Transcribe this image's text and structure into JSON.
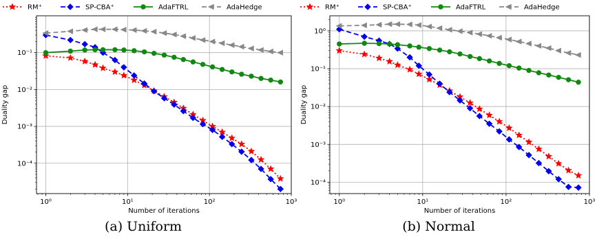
{
  "legend": [
    "RM⁺",
    "SP-CBA⁺",
    "AdaFTRL",
    "AdaHedge"
  ],
  "colors": {
    "RM": "#ff0000",
    "SPCBA": "#0000ee",
    "AdaFTRL": "#118811",
    "AdaHedge": "#888888"
  },
  "captions": [
    "(a) Uniform",
    "(b) Normal"
  ],
  "chart_data": [
    {
      "type": "line",
      "x_scale": "log",
      "y_scale": "log",
      "xlabel": "Number of iterations",
      "ylabel": "Duality gap",
      "xlim": [
        0.77,
        1000
      ],
      "ylim": [
        1.5e-05,
        1
      ],
      "grid": true,
      "legend_position": "top",
      "x_ticks": [
        1,
        10,
        100,
        1000
      ],
      "y_ticks": [
        0.0001,
        0.001,
        0.01,
        0.1
      ],
      "x": [
        1,
        2,
        3,
        4,
        5,
        7,
        9,
        12,
        16,
        21,
        28,
        37,
        48,
        63,
        83,
        109,
        143,
        188,
        247,
        325,
        427,
        561,
        738
      ],
      "series": [
        {
          "name": "RM⁺",
          "values": [
            0.082,
            0.072,
            0.058,
            0.047,
            0.038,
            0.03,
            0.024,
            0.018,
            0.013,
            0.0092,
            0.0064,
            0.0045,
            0.0031,
            0.0021,
            0.00145,
            0.001,
            0.0007,
            0.00048,
            0.00033,
            0.00021,
            0.000125,
            7e-05,
            3.8e-05
          ]
        },
        {
          "name": "SP-CBA⁺",
          "values": [
            0.3,
            0.22,
            0.17,
            0.14,
            0.1,
            0.063,
            0.04,
            0.024,
            0.0145,
            0.009,
            0.0058,
            0.0039,
            0.0026,
            0.0017,
            0.00115,
            0.0008,
            0.00052,
            0.00033,
            0.000205,
            0.000122,
            7e-05,
            3.7e-05,
            2e-05
          ]
        },
        {
          "name": "AdaFTRL",
          "values": [
            0.1,
            0.11,
            0.118,
            0.12,
            0.12,
            0.12,
            0.118,
            0.113,
            0.105,
            0.096,
            0.086,
            0.075,
            0.065,
            0.056,
            0.048,
            0.041,
            0.035,
            0.03,
            0.026,
            0.023,
            0.02,
            0.018,
            0.016
          ]
        },
        {
          "name": "AdaHedge",
          "values": [
            0.34,
            0.38,
            0.41,
            0.43,
            0.43,
            0.43,
            0.42,
            0.41,
            0.39,
            0.37,
            0.34,
            0.31,
            0.28,
            0.25,
            0.22,
            0.2,
            0.18,
            0.16,
            0.145,
            0.13,
            0.118,
            0.108,
            0.1
          ]
        }
      ]
    },
    {
      "type": "line",
      "x_scale": "log",
      "y_scale": "log",
      "xlabel": "Number of iterations",
      "ylabel": "Duality gap",
      "xlim": [
        0.77,
        1000
      ],
      "ylim": [
        5e-05,
        2.5
      ],
      "grid": true,
      "legend_position": "top",
      "x_ticks": [
        1,
        10,
        100,
        1000
      ],
      "y_ticks": [
        0.0001,
        0.001,
        0.01,
        0.1,
        1
      ],
      "x": [
        1,
        2,
        3,
        4,
        5,
        7,
        9,
        12,
        16,
        21,
        28,
        37,
        48,
        63,
        83,
        109,
        143,
        188,
        247,
        325,
        427,
        561,
        738
      ],
      "series": [
        {
          "name": "RM⁺",
          "values": [
            0.3,
            0.24,
            0.19,
            0.155,
            0.125,
            0.095,
            0.072,
            0.052,
            0.037,
            0.026,
            0.018,
            0.0125,
            0.0086,
            0.0059,
            0.004,
            0.0027,
            0.00175,
            0.00115,
            0.00075,
            0.00048,
            0.00031,
            0.000205,
            0.00015
          ]
        },
        {
          "name": "SP-CBA⁺",
          "values": [
            1.1,
            0.7,
            0.55,
            0.45,
            0.34,
            0.2,
            0.12,
            0.07,
            0.04,
            0.024,
            0.0145,
            0.009,
            0.0056,
            0.0035,
            0.0022,
            0.00135,
            0.00085,
            0.00052,
            0.00032,
            0.000195,
            0.00012,
            7.5e-05,
            7.2e-05
          ]
        },
        {
          "name": "AdaFTRL",
          "values": [
            0.45,
            0.47,
            0.46,
            0.45,
            0.43,
            0.4,
            0.37,
            0.34,
            0.31,
            0.28,
            0.245,
            0.21,
            0.185,
            0.16,
            0.138,
            0.12,
            0.104,
            0.09,
            0.078,
            0.068,
            0.059,
            0.051,
            0.044
          ]
        },
        {
          "name": "AdaHedge",
          "values": [
            1.35,
            1.4,
            1.45,
            1.5,
            1.5,
            1.48,
            1.42,
            1.3,
            1.18,
            1.07,
            0.98,
            0.9,
            0.82,
            0.74,
            0.66,
            0.59,
            0.52,
            0.46,
            0.4,
            0.35,
            0.3,
            0.26,
            0.23
          ]
        }
      ]
    }
  ]
}
